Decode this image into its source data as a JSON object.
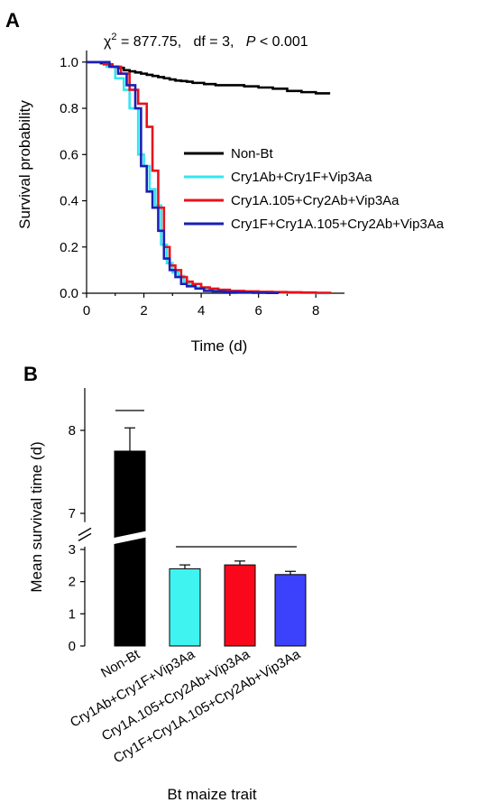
{
  "figure": {
    "panel_a_letter": "A",
    "panel_b_letter": "B"
  },
  "chart_data": [
    {
      "type": "line",
      "subtype": "step",
      "panel": "A",
      "annotation": {
        "chi": "χ",
        "sup": "2",
        "rest": " = 877.75,   df = 3,   ",
        "p": "P",
        "p_rest": " < 0.001"
      },
      "xlabel": "Time (d)",
      "ylabel": "Survival probability",
      "xlim": [
        0,
        9
      ],
      "ylim": [
        0,
        1.05
      ],
      "xticks": [
        "0",
        "2",
        "4",
        "6",
        "8"
      ],
      "yticks": [
        "0.0",
        "0.2",
        "0.4",
        "0.6",
        "0.8",
        "1.0"
      ],
      "legend_position": "right",
      "series": [
        {
          "name": "Non-Bt",
          "color": "#000000",
          "x": [
            0,
            0.5,
            0.7,
            0.9,
            1.1,
            1.3,
            1.5,
            1.7,
            1.9,
            2.1,
            2.3,
            2.5,
            2.7,
            2.9,
            3.1,
            3.3,
            3.5,
            3.7,
            3.9,
            4.1,
            4.3,
            4.5,
            5.0,
            5.5,
            6.0,
            6.5,
            7.0,
            7.5,
            8.0,
            8.5
          ],
          "y": [
            1.0,
            0.995,
            0.99,
            0.98,
            0.975,
            0.965,
            0.96,
            0.955,
            0.95,
            0.945,
            0.94,
            0.935,
            0.93,
            0.925,
            0.92,
            0.918,
            0.915,
            0.91,
            0.91,
            0.905,
            0.905,
            0.9,
            0.9,
            0.895,
            0.89,
            0.885,
            0.875,
            0.87,
            0.865,
            0.865
          ]
        },
        {
          "name": "Cry1Ab+Cry1F+Vip3Aa",
          "color": "#33e6f0",
          "x": [
            0,
            0.7,
            1.0,
            1.3,
            1.5,
            1.8,
            2.0,
            2.2,
            2.4,
            2.6,
            2.8,
            3.0,
            3.2,
            3.4,
            3.6,
            3.8,
            4.0,
            4.3,
            4.6,
            5.0,
            5.5,
            6.0,
            6.5,
            7.0,
            7.5,
            8.0,
            8.5
          ],
          "y": [
            1.0,
            0.98,
            0.93,
            0.88,
            0.8,
            0.6,
            0.55,
            0.45,
            0.38,
            0.21,
            0.13,
            0.09,
            0.075,
            0.05,
            0.035,
            0.025,
            0.02,
            0.015,
            0.01,
            0.008,
            0.005,
            0.004,
            0.003,
            0.002,
            0.002,
            0.0,
            0.0
          ]
        },
        {
          "name": "Cry1A.105+Cry2Ab+Vip3Aa",
          "color": "#e8121b",
          "x": [
            0,
            0.6,
            0.9,
            1.2,
            1.5,
            1.8,
            2.1,
            2.3,
            2.5,
            2.7,
            2.9,
            3.1,
            3.3,
            3.5,
            3.7,
            4.0,
            4.3,
            4.6,
            5.0,
            5.5,
            6.0,
            6.5,
            7.0,
            7.5,
            8.0,
            8.5
          ],
          "y": [
            1.0,
            0.99,
            0.98,
            0.95,
            0.88,
            0.82,
            0.72,
            0.53,
            0.37,
            0.2,
            0.12,
            0.1,
            0.07,
            0.05,
            0.04,
            0.025,
            0.02,
            0.015,
            0.01,
            0.008,
            0.006,
            0.005,
            0.004,
            0.003,
            0.002,
            0.0
          ]
        },
        {
          "name": "Cry1F+Cry1A.105+Cry2Ab+Vip3Aa",
          "color": "#1a1fb5",
          "x": [
            0,
            0.8,
            1.1,
            1.4,
            1.7,
            1.9,
            2.1,
            2.3,
            2.5,
            2.7,
            2.9,
            3.1,
            3.3,
            3.5,
            3.8,
            4.1,
            4.4,
            4.8,
            5.3,
            5.8,
            6.3,
            6.7
          ],
          "y": [
            1.0,
            0.98,
            0.95,
            0.9,
            0.8,
            0.55,
            0.44,
            0.37,
            0.27,
            0.15,
            0.1,
            0.07,
            0.04,
            0.03,
            0.02,
            0.01,
            0.008,
            0.005,
            0.003,
            0.002,
            0.001,
            0.0
          ]
        }
      ]
    },
    {
      "type": "bar",
      "panel": "B",
      "xlabel": "Bt maize trait",
      "ylabel": "Mean survival time (d)",
      "categories": [
        "Non-Bt",
        "Cry1Ab+Cry1F+Vip3Aa",
        "Cry1A.105+Cry2Ab+Vip3Aa",
        "Cry1F+Cry1A.105+Cry2Ab+Vip3Aa"
      ],
      "values": [
        7.75,
        2.4,
        2.52,
        2.22
      ],
      "errors": [
        0.28,
        0.12,
        0.12,
        0.1
      ],
      "colors": [
        "#000000",
        "#3ff3f0",
        "#f8081a",
        "#3c42fb"
      ],
      "axis_break": {
        "lower_max": 3.2,
        "upper_min": 6.85
      },
      "ylim_lower": [
        0,
        3.2
      ],
      "ylim_upper": [
        6.85,
        8.4
      ],
      "yticks": [
        "0",
        "1",
        "2",
        "3",
        "7",
        "8"
      ],
      "grouping_lines": [
        {
          "from_category": 0,
          "to_category": 0
        },
        {
          "from_category": 1,
          "to_category": 3
        }
      ]
    }
  ]
}
